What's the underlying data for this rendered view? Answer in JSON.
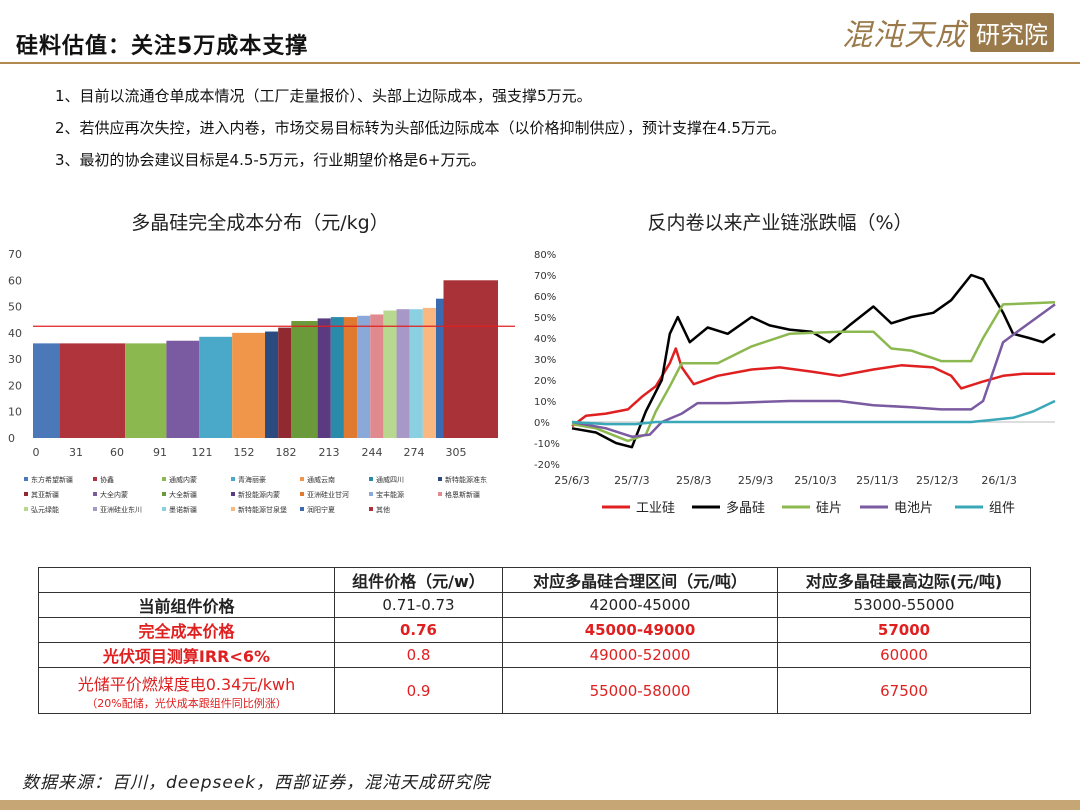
{
  "header": {
    "title": "硅料估值：关注5万成本支撑",
    "logo_text": "混沌天成",
    "logo_box": "研究院"
  },
  "bullets": [
    "1、目前以流通仓单成本情况（工厂走量报价）、头部上边际成本，强支撑5万元。",
    "2、若供应再次失控，进入内卷，市场交易目标转为头部低边际成本（以价格抑制供应），预计支撑在4.5万元。",
    "3、最初的协会建议目标是4.5-5万元，行业期望价格是6+万元。"
  ],
  "chart_data": [
    {
      "type": "bar",
      "title": "多晶硅完全成本分布（元/kg）",
      "ylim": [
        0,
        70
      ],
      "yticks": [
        0,
        10,
        20,
        30,
        40,
        50,
        60,
        70
      ],
      "xticks": [
        0,
        31,
        60,
        91,
        121,
        152,
        182,
        213,
        244,
        274,
        305
      ],
      "xmax": 352,
      "reference_line": 42.5,
      "reference_color": "#e02020",
      "bars": [
        {
          "name": "东方希望新疆",
          "start": 0,
          "width": 28,
          "value": 36,
          "color": "#4a78b8"
        },
        {
          "name": "协鑫",
          "start": 28,
          "width": 70,
          "value": 36,
          "color": "#b0343c"
        },
        {
          "name": "通威内蒙",
          "start": 98,
          "width": 44,
          "value": 36,
          "color": "#8cb850"
        },
        {
          "name": "大全内蒙",
          "start": 142,
          "width": 35,
          "value": 37,
          "color": "#7a5aa0"
        },
        {
          "name": "青海丽豪",
          "start": 177,
          "width": 35,
          "value": 38.5,
          "color": "#4aa8c8"
        },
        {
          "name": "通威云南",
          "start": 212,
          "width": 35,
          "value": 40,
          "color": "#f0964a"
        },
        {
          "name": "新特能源准东",
          "start": 247,
          "width": 14,
          "value": 40.5,
          "color": "#2a4a80"
        },
        {
          "name": "其亚新疆",
          "start": 261,
          "width": 14,
          "value": 42,
          "color": "#902a30"
        },
        {
          "name": "大全新疆",
          "start": 275,
          "width": 28,
          "value": 44.5,
          "color": "#6a9a3a"
        },
        {
          "name": "新投能源内蒙",
          "start": 303,
          "width": 14,
          "value": 45.5,
          "color": "#5a3a80"
        },
        {
          "name": "通威四川",
          "start": 317,
          "width": 14,
          "value": 46,
          "color": "#2a8aaa"
        },
        {
          "name": "亚洲硅业甘河",
          "start": 331,
          "width": 14,
          "value": 46,
          "color": "#e07a30"
        },
        {
          "name": "宝丰能源",
          "start": 345,
          "width": 14,
          "value": 46.5,
          "color": "#8aa8d8"
        },
        {
          "name": "格恩斯新疆",
          "start": 359,
          "width": 14,
          "value": 47,
          "color": "#e08a90"
        },
        {
          "name": "弘元绿能",
          "start": 373,
          "width": 14,
          "value": 48.5,
          "color": "#b8d890"
        },
        {
          "name": "亚洲硅业东川",
          "start": 387,
          "width": 14,
          "value": 49,
          "color": "#a898c8"
        },
        {
          "name": "墨诺新疆",
          "start": 401,
          "width": 14,
          "value": 49,
          "color": "#8ad0e0"
        },
        {
          "name": "新特能源甘泉堡",
          "start": 415,
          "width": 14,
          "value": 49.5,
          "color": "#f8b880"
        },
        {
          "name": "润阳宁夏",
          "start": 429,
          "width": 8,
          "value": 53,
          "color": "#3a6ab0"
        },
        {
          "name": "其他",
          "start": 437,
          "width": 58,
          "value": 60,
          "color": "#a83238"
        }
      ],
      "legend": [
        "东方希望新疆",
        "协鑫",
        "通威内蒙",
        "青海丽豪",
        "通威云南",
        "通威四川",
        "新特能源准东",
        "其亚新疆",
        "大全内蒙",
        "大全新疆",
        "新投能源内蒙",
        "亚洲硅业甘河",
        "宝丰能源",
        "格恩斯新疆",
        "弘元绿能",
        "亚洲硅业东川",
        "墨诺新疆",
        "新特能源甘泉堡",
        "润阳宁夏",
        "其他"
      ],
      "legend_colors": [
        "#4a78b8",
        "#b0343c",
        "#8cb850",
        "#4aa8c8",
        "#f0964a",
        "#2a8aaa",
        "#2a4a80",
        "#902a30",
        "#7a5aa0",
        "#6a9a3a",
        "#5a3a80",
        "#e07a30",
        "#8aa8d8",
        "#e08a90",
        "#b8d890",
        "#a898c8",
        "#8ad0e0",
        "#f8b880",
        "#3a6ab0",
        "#a83238"
      ]
    },
    {
      "type": "line",
      "title": "反内卷以来产业链涨跌幅（%）",
      "ylim": [
        -20,
        80
      ],
      "yticks": [
        "-20%",
        "-10%",
        "0%",
        "10%",
        "20%",
        "30%",
        "40%",
        "50%",
        "60%",
        "70%",
        "80%"
      ],
      "xticks": [
        "25/6/3",
        "25/7/3",
        "25/8/3",
        "25/9/3",
        "25/10/3",
        "25/11/3",
        "25/12/3",
        "26/1/3"
      ],
      "x_start": "2025-06-03",
      "x_end": "2026-01-31",
      "series": [
        {
          "name": "工业硅",
          "color": "#e02020",
          "points": [
            [
              "2025-06-03",
              -2
            ],
            [
              "2025-06-10",
              3
            ],
            [
              "2025-06-20",
              4
            ],
            [
              "2025-07-01",
              6
            ],
            [
              "2025-07-08",
              12
            ],
            [
              "2025-07-15",
              17
            ],
            [
              "2025-07-22",
              28
            ],
            [
              "2025-07-25",
              35
            ],
            [
              "2025-07-28",
              26
            ],
            [
              "2025-08-03",
              18
            ],
            [
              "2025-08-15",
              22
            ],
            [
              "2025-09-01",
              25
            ],
            [
              "2025-09-15",
              26
            ],
            [
              "2025-10-01",
              24
            ],
            [
              "2025-10-15",
              22
            ],
            [
              "2025-11-01",
              25
            ],
            [
              "2025-11-15",
              27
            ],
            [
              "2025-12-01",
              26
            ],
            [
              "2025-12-10",
              22
            ],
            [
              "2025-12-15",
              16
            ],
            [
              "2025-12-25",
              19
            ],
            [
              "2026-01-05",
              22
            ],
            [
              "2026-01-15",
              23
            ],
            [
              "2026-01-31",
              23
            ]
          ]
        },
        {
          "name": "多晶硅",
          "color": "#000000",
          "points": [
            [
              "2025-06-03",
              -3
            ],
            [
              "2025-06-15",
              -5
            ],
            [
              "2025-06-25",
              -10
            ],
            [
              "2025-07-03",
              -12
            ],
            [
              "2025-07-10",
              5
            ],
            [
              "2025-07-18",
              20
            ],
            [
              "2025-07-22",
              42
            ],
            [
              "2025-07-26",
              50
            ],
            [
              "2025-08-01",
              38
            ],
            [
              "2025-08-10",
              45
            ],
            [
              "2025-08-20",
              42
            ],
            [
              "2025-09-01",
              50
            ],
            [
              "2025-09-10",
              46
            ],
            [
              "2025-09-20",
              44
            ],
            [
              "2025-10-01",
              43
            ],
            [
              "2025-10-10",
              38
            ],
            [
              "2025-10-20",
              46
            ],
            [
              "2025-11-01",
              55
            ],
            [
              "2025-11-10",
              47
            ],
            [
              "2025-11-20",
              50
            ],
            [
              "2025-12-01",
              52
            ],
            [
              "2025-12-10",
              58
            ],
            [
              "2025-12-20",
              70
            ],
            [
              "2025-12-26",
              68
            ],
            [
              "2026-01-05",
              52
            ],
            [
              "2026-01-10",
              42
            ],
            [
              "2026-01-18",
              40
            ],
            [
              "2026-01-25",
              38
            ],
            [
              "2026-01-31",
              42
            ]
          ]
        },
        {
          "name": "硅片",
          "color": "#8cb850",
          "points": [
            [
              "2025-06-03",
              -1
            ],
            [
              "2025-06-15",
              -3
            ],
            [
              "2025-07-01",
              -9
            ],
            [
              "2025-07-10",
              -6
            ],
            [
              "2025-07-15",
              5
            ],
            [
              "2025-07-22",
              17
            ],
            [
              "2025-07-28",
              28
            ],
            [
              "2025-08-15",
              28
            ],
            [
              "2025-09-01",
              36
            ],
            [
              "2025-09-20",
              42
            ],
            [
              "2025-10-15",
              43
            ],
            [
              "2025-11-01",
              43
            ],
            [
              "2025-11-10",
              35
            ],
            [
              "2025-11-20",
              34
            ],
            [
              "2025-12-05",
              29
            ],
            [
              "2025-12-20",
              29
            ],
            [
              "2025-12-26",
              40
            ],
            [
              "2026-01-05",
              56
            ],
            [
              "2026-01-31",
              57
            ]
          ]
        },
        {
          "name": "电池片",
          "color": "#7a5aa0",
          "points": [
            [
              "2025-06-03",
              0
            ],
            [
              "2025-06-20",
              -3
            ],
            [
              "2025-07-03",
              -7
            ],
            [
              "2025-07-12",
              -6
            ],
            [
              "2025-07-18",
              0
            ],
            [
              "2025-07-28",
              4
            ],
            [
              "2025-08-05",
              9
            ],
            [
              "2025-08-20",
              9
            ],
            [
              "2025-09-20",
              10
            ],
            [
              "2025-10-15",
              10
            ],
            [
              "2025-11-01",
              8
            ],
            [
              "2025-11-20",
              7
            ],
            [
              "2025-12-05",
              6
            ],
            [
              "2025-12-20",
              6
            ],
            [
              "2025-12-26",
              10
            ],
            [
              "2026-01-05",
              38
            ],
            [
              "2026-01-15",
              45
            ],
            [
              "2026-01-31",
              56
            ]
          ]
        },
        {
          "name": "组件",
          "color": "#3aa8b8",
          "points": [
            [
              "2025-06-03",
              0
            ],
            [
              "2025-06-20",
              -1
            ],
            [
              "2025-07-05",
              -1
            ],
            [
              "2025-07-15",
              0
            ],
            [
              "2025-07-28",
              0
            ],
            [
              "2025-10-01",
              0
            ],
            [
              "2025-12-20",
              0
            ],
            [
              "2026-01-10",
              2
            ],
            [
              "2026-01-20",
              5
            ],
            [
              "2026-01-31",
              10
            ]
          ]
        }
      ]
    }
  ],
  "table": {
    "headers": [
      "",
      "组件价格（元/w）",
      "对应多晶硅合理区间（元/吨）",
      "对应多晶硅最高边际(元/吨)"
    ],
    "rows": [
      {
        "label": "当前组件价格",
        "sub": "",
        "price": "0.71-0.73",
        "range": "42000-45000",
        "max": "53000-55000",
        "style": "black"
      },
      {
        "label": "完全成本价格",
        "sub": "",
        "price": "0.76",
        "range": "45000-49000",
        "max": "57000",
        "style": "redb"
      },
      {
        "label": "光伏项目测算IRR<6%",
        "sub": "",
        "price": "0.8",
        "range": "49000-52000",
        "max": "60000",
        "style": "red"
      },
      {
        "label": "光储平价燃煤度电0.34元/kwh",
        "sub": "（20%配储，光伏成本跟组件同比例涨）",
        "price": "0.9",
        "range": "55000-58000",
        "max": "67500",
        "style": "red"
      }
    ]
  },
  "source": "数据来源：百川，deepseek，西部证券，混沌天成研究院"
}
